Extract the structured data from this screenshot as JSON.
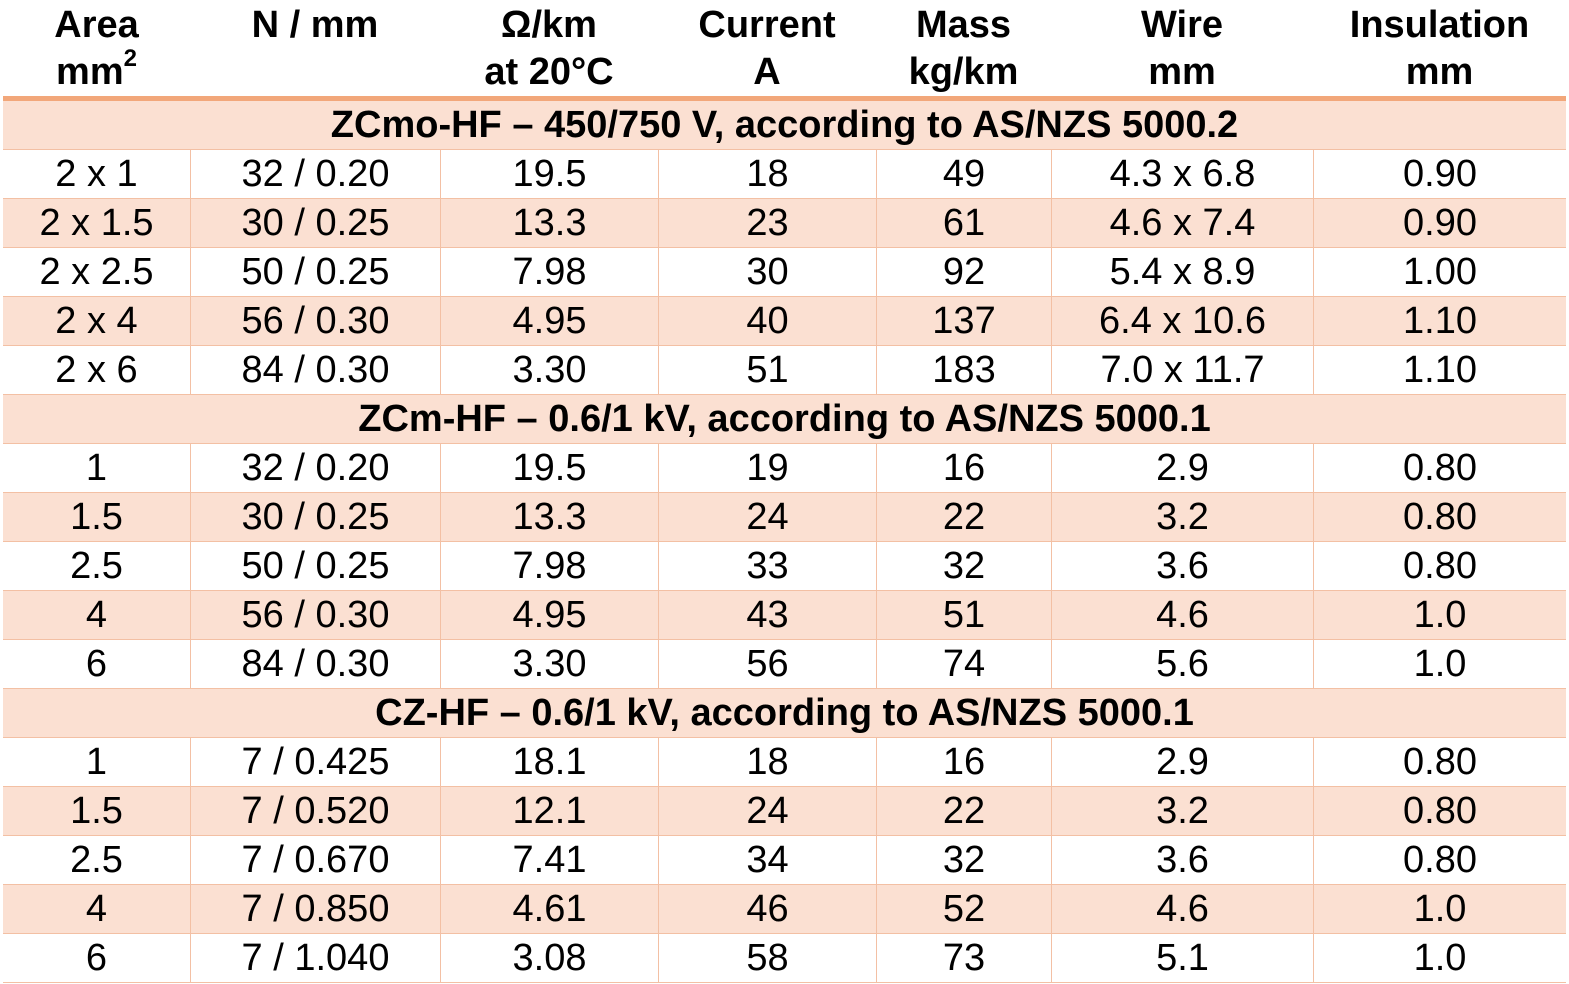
{
  "headers": [
    {
      "line1": "Area",
      "line2": "mm",
      "sup": "2"
    },
    {
      "line1": "N / mm",
      "line2": "",
      "sup": ""
    },
    {
      "line1": "Ω/km",
      "line2": "at 20°C",
      "sup": ""
    },
    {
      "line1": "Current",
      "line2": "A",
      "sup": ""
    },
    {
      "line1": "Mass",
      "line2": "kg/km",
      "sup": ""
    },
    {
      "line1": "Wire",
      "line2": "mm",
      "sup": ""
    },
    {
      "line1": "Insulation",
      "line2": "mm",
      "sup": ""
    }
  ],
  "sections": [
    {
      "title": "ZCmo-HF – 450/750 V, according to AS/NZS 5000.2",
      "rows": [
        [
          "2 x 1",
          "32 / 0.20",
          "19.5",
          "18",
          "49",
          "4.3 x 6.8",
          "0.90"
        ],
        [
          "2 x 1.5",
          "30 / 0.25",
          "13.3",
          "23",
          "61",
          "4.6 x 7.4",
          "0.90"
        ],
        [
          "2 x 2.5",
          "50 / 0.25",
          "7.98",
          "30",
          "92",
          "5.4 x 8.9",
          "1.00"
        ],
        [
          "2 x 4",
          "56 / 0.30",
          "4.95",
          "40",
          "137",
          "6.4 x 10.6",
          "1.10"
        ],
        [
          "2 x 6",
          "84 / 0.30",
          "3.30",
          "51",
          "183",
          "7.0 x 11.7",
          "1.10"
        ]
      ]
    },
    {
      "title": "ZCm-HF – 0.6/1 kV, according to AS/NZS 5000.1",
      "rows": [
        [
          "1",
          "32 / 0.20",
          "19.5",
          "19",
          "16",
          "2.9",
          "0.80"
        ],
        [
          "1.5",
          "30 / 0.25",
          "13.3",
          "24",
          "22",
          "3.2",
          "0.80"
        ],
        [
          "2.5",
          "50 / 0.25",
          "7.98",
          "33",
          "32",
          "3.6",
          "0.80"
        ],
        [
          "4",
          "56 / 0.30",
          "4.95",
          "43",
          "51",
          "4.6",
          "1.0"
        ],
        [
          "6",
          "84 / 0.30",
          "3.30",
          "56",
          "74",
          "5.6",
          "1.0"
        ]
      ]
    },
    {
      "title": "CZ-HF – 0.6/1 kV, according to AS/NZS 5000.1",
      "rows": [
        [
          "1",
          "7 / 0.425",
          "18.1",
          "18",
          "16",
          "2.9",
          "0.80"
        ],
        [
          "1.5",
          "7 / 0.520",
          "12.1",
          "24",
          "22",
          "3.2",
          "0.80"
        ],
        [
          "2.5",
          "7 / 0.670",
          "7.41",
          "34",
          "32",
          "3.6",
          "0.80"
        ],
        [
          "4",
          "7 / 0.850",
          "4.61",
          "46",
          "52",
          "4.6",
          "1.0"
        ],
        [
          "6",
          "7 / 1.040",
          "3.08",
          "58",
          "73",
          "5.1",
          "1.0"
        ]
      ]
    }
  ]
}
